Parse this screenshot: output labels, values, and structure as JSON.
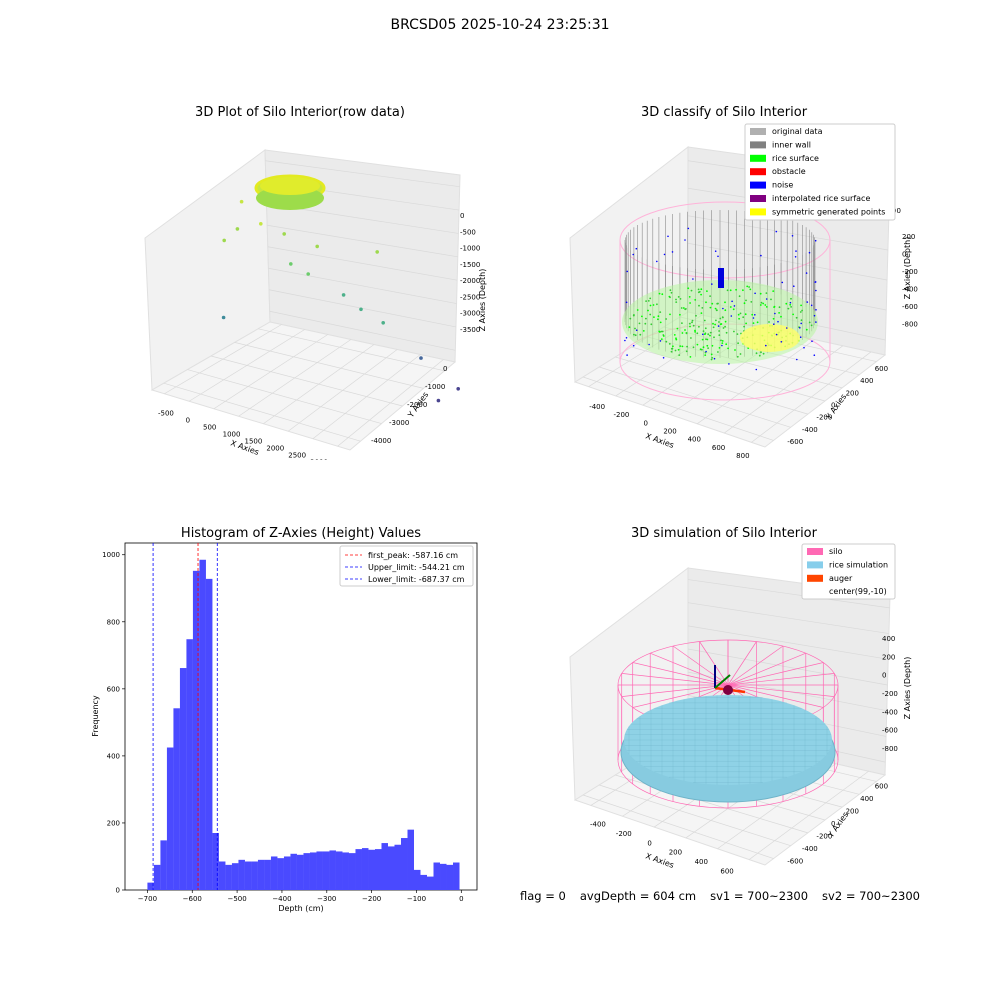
{
  "figure": {
    "suptitle": "BRCSD05 2025-10-24 23:25:31",
    "footer": {
      "flag": "flag = 0",
      "avg_depth": "avgDepth = 604 cm",
      "sv1": "sv1 = 700~2300",
      "sv2": "sv2 = 700~2300"
    }
  },
  "chart_data": [
    {
      "type": "scatter",
      "title": "3D Plot of Silo Interior(row data)",
      "xlabel": "X Axies",
      "ylabel": "Y Axies",
      "zlabel": "Z Axies (Depth)",
      "xticks": [
        "-500",
        "0",
        "500",
        "1000",
        "1500",
        "2000",
        "2500",
        "3000"
      ],
      "yticks": [
        "0",
        "-1000",
        "-2000",
        "-3000",
        "-4000"
      ],
      "zticks": [
        "0",
        "-500",
        "-1000",
        "-1500",
        "-2000",
        "-2500",
        "-3000",
        "-3500"
      ],
      "grid": true,
      "colormap": "viridis by depth",
      "series": [
        {
          "points": [
            [
              300,
              -200,
              -100
            ],
            [
              500,
              -600,
              -500
            ],
            [
              800,
              -900,
              -650
            ],
            [
              1200,
              -1400,
              -800
            ],
            [
              200,
              -300,
              -700
            ]
          ]
        },
        {
          "points": [
            [
              700,
              -1600,
              -1150
            ],
            [
              900,
              -1900,
              -1300
            ],
            [
              1400,
              -2200,
              -1700
            ],
            [
              1600,
              -2500,
              -1950
            ],
            [
              1850,
              -2900,
              -2150
            ],
            [
              2300,
              -3500,
              -2800
            ],
            [
              2800,
              -3900,
              -3400
            ],
            [
              2500,
              -3800,
              -3700
            ],
            [
              -300,
              -1200,
              -2500
            ],
            [
              -200,
              -900,
              -800
            ],
            [
              1900,
              -2400,
              -650
            ]
          ]
        }
      ]
    },
    {
      "type": "scatter",
      "title": "3D classify of Silo Interior",
      "xlabel": "X Axies",
      "ylabel": "Y Axies",
      "zlabel": "Z Axies (Depth)",
      "xticks": [
        "-400",
        "-200",
        "0",
        "200",
        "400",
        "600",
        "800"
      ],
      "yticks": [
        "600",
        "400",
        "200",
        "0",
        "-200",
        "-400",
        "-600"
      ],
      "zticks": [
        "200",
        "0",
        "-200",
        "-400",
        "-600",
        "-800"
      ],
      "extra_tick": "00",
      "grid": true,
      "legend_position": "top-right",
      "legend": [
        {
          "label": "original data",
          "color": "#b0b0b0"
        },
        {
          "label": "inner wall",
          "color": "#808080"
        },
        {
          "label": "rice surface",
          "color": "#00ff00"
        },
        {
          "label": "obstacle",
          "color": "#ff0000"
        },
        {
          "label": "noise",
          "color": "#0000ff"
        },
        {
          "label": "interpolated rice surface",
          "color": "#800080"
        },
        {
          "label": "symmetric generated points",
          "color": "#ffff00"
        }
      ]
    },
    {
      "type": "bar",
      "title": "Histogram of Z-Axies (Height) Values",
      "xlabel": "Depth (cm)",
      "ylabel": "Frequency",
      "xlim": [
        -750,
        35
      ],
      "ylim": [
        0,
        1035
      ],
      "xticks": [
        -700,
        -600,
        -500,
        -400,
        -300,
        -200,
        -100,
        0
      ],
      "yticks": [
        0,
        200,
        400,
        600,
        800,
        1000
      ],
      "bin_width": 14.5,
      "bin_start": -700,
      "bar_color": "#4a4aff",
      "values": [
        22,
        75,
        148,
        425,
        542,
        662,
        748,
        952,
        985,
        928,
        170,
        85,
        75,
        80,
        90,
        85,
        85,
        90,
        90,
        100,
        95,
        100,
        108,
        105,
        110,
        112,
        115,
        115,
        118,
        115,
        112,
        110,
        122,
        125,
        120,
        122,
        140,
        130,
        135,
        155,
        180,
        60,
        45,
        40,
        82,
        78,
        75,
        82
      ],
      "vlines": [
        {
          "label": "first_peak: -587.16 cm",
          "x": -587.16,
          "color": "#ff0000"
        },
        {
          "label": "Upper_limit: -544.21 cm",
          "x": -544.21,
          "color": "#0000ff"
        },
        {
          "label": "Lower_limit: -687.37 cm",
          "x": -687.37,
          "color": "#0000ff"
        }
      ],
      "legend_position": "top-right"
    },
    {
      "type": "scatter",
      "title": "3D simulation of Silo Interior",
      "xlabel": "X Axies",
      "ylabel": "Y Axies",
      "zlabel": "Z Axies (Depth)",
      "xticks": [
        "-400",
        "-200",
        "0",
        "200",
        "400",
        "600"
      ],
      "yticks": [
        "600",
        "400",
        "200",
        "0",
        "-200",
        "-400",
        "-600"
      ],
      "zticks": [
        "400",
        "200",
        "0",
        "-200",
        "-400",
        "-600",
        "-800"
      ],
      "grid": true,
      "legend_position": "top-right",
      "legend": [
        {
          "label": "silo",
          "color": "#ff69b4"
        },
        {
          "label": "rice simulation",
          "color": "#87ceeb"
        },
        {
          "label": "auger",
          "color": "#ff4500"
        },
        {
          "label": "center(99,-10)",
          "color": "none"
        }
      ]
    }
  ]
}
